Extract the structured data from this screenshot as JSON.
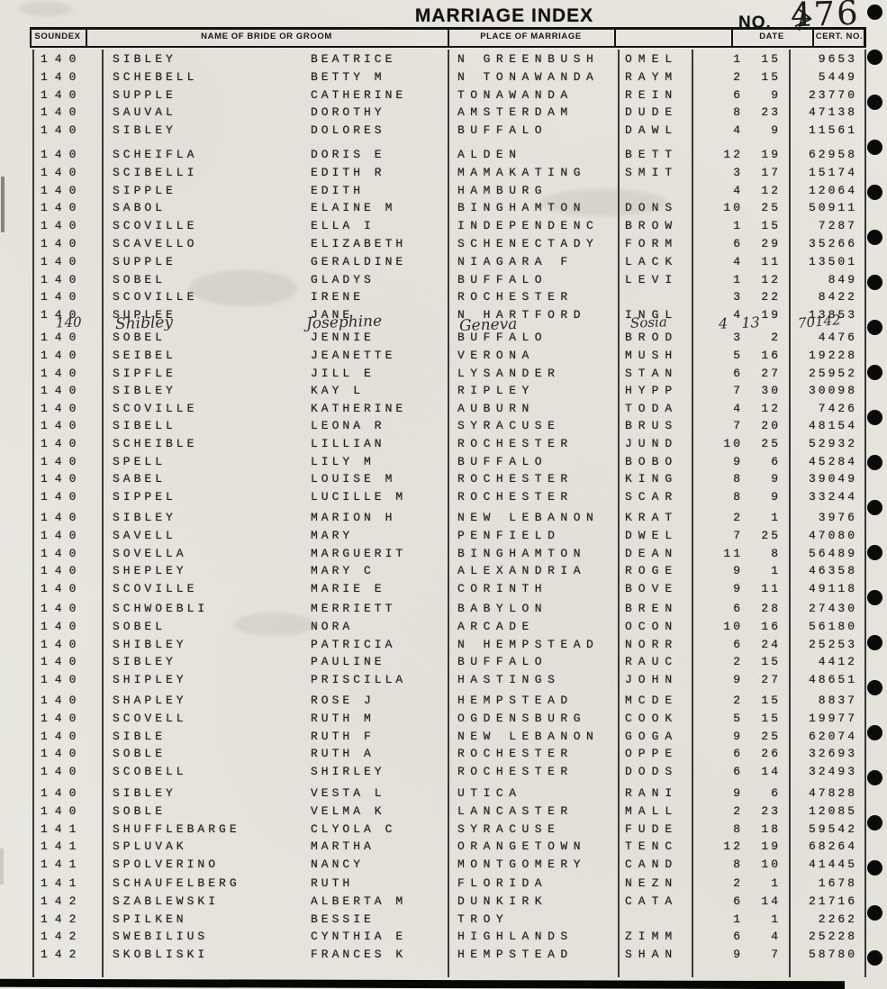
{
  "page": {
    "title": "MARRIAGE INDEX",
    "no_label": "NO.",
    "no_value": "476"
  },
  "table": {
    "headers": {
      "soundex": "SOUNDEX",
      "name": "NAME OF BRIDE OR GROOM",
      "place": "PLACE OF MARRIAGE",
      "blank": "",
      "date": "DATE",
      "cert": "CERT. NO."
    },
    "handwritten": {
      "soundex": "140",
      "surname": "Shibley",
      "given": "Josephine",
      "place": "Geneva",
      "code": "Sosia",
      "date": "4   13",
      "cert": "70142"
    },
    "blocks": [
      [
        {
          "soundex": "140",
          "surname": "SIBLEY",
          "given": "BEATRICE",
          "place": "N GREENBUSH",
          "code": "OMEL",
          "month": "1",
          "day": "15",
          "cert": "9653"
        },
        {
          "soundex": "140",
          "surname": "SCHEBELL",
          "given": "BETTY M",
          "place": "N TONAWANDA",
          "code": "RAYM",
          "month": "2",
          "day": "15",
          "cert": "5449"
        },
        {
          "soundex": "140",
          "surname": "SUPPLE",
          "given": "CATHERINE",
          "place": "TONAWANDA",
          "code": "REIN",
          "month": "6",
          "day": "9",
          "cert": "23770"
        },
        {
          "soundex": "140",
          "surname": "SAUVAL",
          "given": "DOROTHY",
          "place": "AMSTERDAM",
          "code": "DUDE",
          "month": "8",
          "day": "23",
          "cert": "47138"
        },
        {
          "soundex": "140",
          "surname": "SIBLEY",
          "given": "DOLORES",
          "place": "BUFFALO",
          "code": "DAWL",
          "month": "4",
          "day": "9",
          "cert": "11561"
        }
      ],
      [
        {
          "soundex": "140",
          "surname": "SCHEIFLA",
          "given": "DORIS E",
          "place": "ALDEN",
          "code": "BETT",
          "month": "12",
          "day": "19",
          "cert": "62958"
        },
        {
          "soundex": "140",
          "surname": "SCIBELLI",
          "given": "EDITH R",
          "place": "MAMAKATING",
          "code": "SMIT",
          "month": "3",
          "day": "17",
          "cert": "15174"
        },
        {
          "soundex": "140",
          "surname": "SIPPLE",
          "given": "EDITH",
          "place": "HAMBURG",
          "code": "",
          "month": "4",
          "day": "12",
          "cert": "12064"
        },
        {
          "soundex": "140",
          "surname": "SABOL",
          "given": "ELAINE M",
          "place": "BINGHAMTON",
          "code": "DONS",
          "month": "10",
          "day": "25",
          "cert": "50911"
        },
        {
          "soundex": "140",
          "surname": "SCOVILLE",
          "given": "ELLA I",
          "place": "INDEPENDENC",
          "code": "BROW",
          "month": "1",
          "day": "15",
          "cert": "7287"
        }
      ],
      [
        {
          "soundex": "140",
          "surname": "SCAVELLO",
          "given": "ELIZABETH",
          "place": "SCHENECTADY",
          "code": "FORM",
          "month": "6",
          "day": "29",
          "cert": "35266"
        },
        {
          "soundex": "140",
          "surname": "SUPPLE",
          "given": "GERALDINE",
          "place": "NIAGARA F",
          "code": "LACK",
          "month": "4",
          "day": "11",
          "cert": "13501"
        },
        {
          "soundex": "140",
          "surname": "SOBEL",
          "given": "GLADYS",
          "place": "BUFFALO",
          "code": "LEVI",
          "month": "1",
          "day": "12",
          "cert": "849"
        },
        {
          "soundex": "140",
          "surname": "SCOVILLE",
          "given": "IRENE",
          "place": "ROCHESTER",
          "code": "",
          "month": "3",
          "day": "22",
          "cert": "8422"
        },
        {
          "soundex": "140",
          "surname": "SUPLEE",
          "given": "JANE",
          "place": "N HARTFORD",
          "code": "INGL",
          "month": "4",
          "day": "19",
          "cert": "13853"
        }
      ],
      [
        {
          "soundex": "140",
          "surname": "SOBEL",
          "given": "JENNIE",
          "place": "BUFFALO",
          "code": "BROD",
          "month": "3",
          "day": "2",
          "cert": "4476"
        },
        {
          "soundex": "140",
          "surname": "SEIBEL",
          "given": "JEANETTE",
          "place": "VERONA",
          "code": "MUSH",
          "month": "5",
          "day": "16",
          "cert": "19228"
        },
        {
          "soundex": "140",
          "surname": "SIPFLE",
          "given": "JILL E",
          "place": "LYSANDER",
          "code": "STAN",
          "month": "6",
          "day": "27",
          "cert": "25952"
        },
        {
          "soundex": "140",
          "surname": "SIBLEY",
          "given": "KAY L",
          "place": "RIPLEY",
          "code": "HYPP",
          "month": "7",
          "day": "30",
          "cert": "30098"
        },
        {
          "soundex": "140",
          "surname": "SCOVILLE",
          "given": "KATHERINE",
          "place": "AUBURN",
          "code": "TODA",
          "month": "4",
          "day": "12",
          "cert": "7426"
        }
      ],
      [
        {
          "soundex": "140",
          "surname": "SIBELL",
          "given": "LEONA R",
          "place": "SYRACUSE",
          "code": "BRUS",
          "month": "7",
          "day": "20",
          "cert": "48154"
        },
        {
          "soundex": "140",
          "surname": "SCHEIBLE",
          "given": "LILLIAN",
          "place": "ROCHESTER",
          "code": "JUND",
          "month": "10",
          "day": "25",
          "cert": "52932"
        },
        {
          "soundex": "140",
          "surname": "SPELL",
          "given": "LILY M",
          "place": "BUFFALO",
          "code": "BOBO",
          "month": "9",
          "day": "6",
          "cert": "45284"
        },
        {
          "soundex": "140",
          "surname": "SABEL",
          "given": "LOUISE M",
          "place": "ROCHESTER",
          "code": "KING",
          "month": "8",
          "day": "9",
          "cert": "39049"
        },
        {
          "soundex": "140",
          "surname": "SIPPEL",
          "given": "LUCILLE M",
          "place": "ROCHESTER",
          "code": "SCAR",
          "month": "8",
          "day": "9",
          "cert": "33244"
        }
      ],
      [
        {
          "soundex": "140",
          "surname": "SIBLEY",
          "given": "MARION H",
          "place": "NEW LEBANON",
          "code": "KRAT",
          "month": "2",
          "day": "1",
          "cert": "3976"
        },
        {
          "soundex": "140",
          "surname": "SAVELL",
          "given": "MARY",
          "place": "PENFIELD",
          "code": "DWEL",
          "month": "7",
          "day": "25",
          "cert": "47080"
        },
        {
          "soundex": "140",
          "surname": "SOVELLA",
          "given": "MARGUERIT",
          "place": "BINGHAMTON",
          "code": "DEAN",
          "month": "11",
          "day": "8",
          "cert": "56489"
        },
        {
          "soundex": "140",
          "surname": "SHEPLEY",
          "given": "MARY C",
          "place": "ALEXANDRIA",
          "code": "ROGE",
          "month": "9",
          "day": "1",
          "cert": "46358"
        },
        {
          "soundex": "140",
          "surname": "SCOVILLE",
          "given": "MARIE E",
          "place": "CORINTH",
          "code": "BOVE",
          "month": "9",
          "day": "11",
          "cert": "49118"
        }
      ],
      [
        {
          "soundex": "140",
          "surname": "SCHWOEBLI",
          "given": "MERRIETT",
          "place": "BABYLON",
          "code": "BREN",
          "month": "6",
          "day": "28",
          "cert": "27430"
        },
        {
          "soundex": "140",
          "surname": "SOBEL",
          "given": "NORA",
          "place": "ARCADE",
          "code": "OCON",
          "month": "10",
          "day": "16",
          "cert": "56180"
        },
        {
          "soundex": "140",
          "surname": "SHIBLEY",
          "given": "PATRICIA",
          "place": "N HEMPSTEAD",
          "code": "NORR",
          "month": "6",
          "day": "24",
          "cert": "25253"
        },
        {
          "soundex": "140",
          "surname": "SIBLEY",
          "given": "PAULINE",
          "place": "BUFFALO",
          "code": "RAUC",
          "month": "2",
          "day": "15",
          "cert": "4412"
        },
        {
          "soundex": "140",
          "surname": "SHIPLEY",
          "given": "PRISCILLA",
          "place": "HASTINGS",
          "code": "JOHN",
          "month": "9",
          "day": "27",
          "cert": "48651"
        }
      ],
      [
        {
          "soundex": "140",
          "surname": "SHAPLEY",
          "given": "ROSE J",
          "place": "HEMPSTEAD",
          "code": "MCDE",
          "month": "2",
          "day": "15",
          "cert": "8837"
        },
        {
          "soundex": "140",
          "surname": "SCOVELL",
          "given": "RUTH M",
          "place": "OGDENSBURG",
          "code": "COOK",
          "month": "5",
          "day": "15",
          "cert": "19977"
        },
        {
          "soundex": "140",
          "surname": "SIBLE",
          "given": "RUTH F",
          "place": "NEW LEBANON",
          "code": "GOGA",
          "month": "9",
          "day": "25",
          "cert": "62074"
        },
        {
          "soundex": "140",
          "surname": "SOBLE",
          "given": "RUTH A",
          "place": "ROCHESTER",
          "code": "OPPE",
          "month": "6",
          "day": "26",
          "cert": "32693"
        },
        {
          "soundex": "140",
          "surname": "SCOBELL",
          "given": "SHIRLEY",
          "place": "ROCHESTER",
          "code": "DODS",
          "month": "6",
          "day": "14",
          "cert": "32493"
        }
      ],
      [
        {
          "soundex": "140",
          "surname": "SIBLEY",
          "given": "VESTA L",
          "place": "UTICA",
          "code": "RANI",
          "month": "9",
          "day": "6",
          "cert": "47828"
        },
        {
          "soundex": "140",
          "surname": "SOBLE",
          "given": "VELMA K",
          "place": "LANCASTER",
          "code": "MALL",
          "month": "2",
          "day": "23",
          "cert": "12085"
        },
        {
          "soundex": "141",
          "surname": "SHUFFLEBARGE",
          "given": "CLYOLA C",
          "place": "SYRACUSE",
          "code": "FUDE",
          "month": "8",
          "day": "18",
          "cert": "59542"
        },
        {
          "soundex": "141",
          "surname": "SPLUVAK",
          "given": "MARTHA",
          "place": "ORANGETOWN",
          "code": "TENC",
          "month": "12",
          "day": "19",
          "cert": "68264"
        },
        {
          "soundex": "141",
          "surname": "SPOLVERINO",
          "given": "NANCY",
          "place": "MONTGOMERY",
          "code": "CAND",
          "month": "8",
          "day": "10",
          "cert": "41445"
        }
      ],
      [
        {
          "soundex": "141",
          "surname": "SCHAUFELBERG",
          "given": "RUTH",
          "place": "FLORIDA",
          "code": "NEZN",
          "month": "2",
          "day": "1",
          "cert": "1678"
        },
        {
          "soundex": "142",
          "surname": "SZABLEWSKI",
          "given": "ALBERTA M",
          "place": "DUNKIRK",
          "code": "CATA",
          "month": "6",
          "day": "14",
          "cert": "21716"
        },
        {
          "soundex": "142",
          "surname": "SPILKEN",
          "given": "BESSIE",
          "place": "TROY",
          "code": "",
          "month": "1",
          "day": "1",
          "cert": "2262"
        },
        {
          "soundex": "142",
          "surname": "SWEBILIUS",
          "given": "CYNTHIA E",
          "place": "HIGHLANDS",
          "code": "ZIMM",
          "month": "6",
          "day": "4",
          "cert": "25228"
        },
        {
          "soundex": "142",
          "surname": "SKOBLISKI",
          "given": "FRANCES K",
          "place": "HEMPSTEAD",
          "code": "SHAN",
          "month": "9",
          "day": "7",
          "cert": "58780"
        }
      ]
    ]
  }
}
